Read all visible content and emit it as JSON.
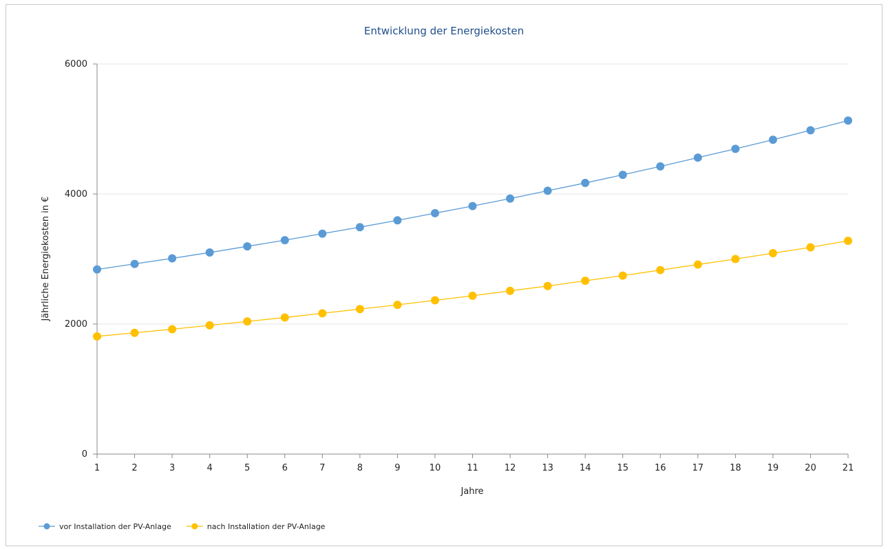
{
  "chart_data": {
    "type": "line",
    "title": "Entwicklung der Energiekosten",
    "xlabel": "Jahre",
    "ylabel": "Jährliche Energiekosten in €",
    "x": [
      1,
      2,
      3,
      4,
      5,
      6,
      7,
      8,
      9,
      10,
      11,
      12,
      13,
      14,
      15,
      16,
      17,
      18,
      19,
      20,
      21
    ],
    "ylim": [
      0,
      6000
    ],
    "yticks": [
      0,
      2000,
      4000,
      6000
    ],
    "grid": true,
    "legend_position": "bottom-left",
    "series": [
      {
        "name": "vor Installation der PV-Anlage",
        "color": "#5b9bd5",
        "values": [
          2840,
          2925,
          3010,
          3100,
          3195,
          3290,
          3390,
          3490,
          3595,
          3705,
          3815,
          3930,
          4050,
          4170,
          4295,
          4425,
          4560,
          4695,
          4835,
          4980,
          5130
        ]
      },
      {
        "name": "nach Installation der PV-Anlage",
        "color": "#ffc000",
        "values": [
          1810,
          1865,
          1920,
          1980,
          2040,
          2100,
          2165,
          2230,
          2295,
          2365,
          2435,
          2510,
          2585,
          2665,
          2745,
          2830,
          2915,
          3000,
          3090,
          3180,
          3280
        ]
      }
    ]
  }
}
